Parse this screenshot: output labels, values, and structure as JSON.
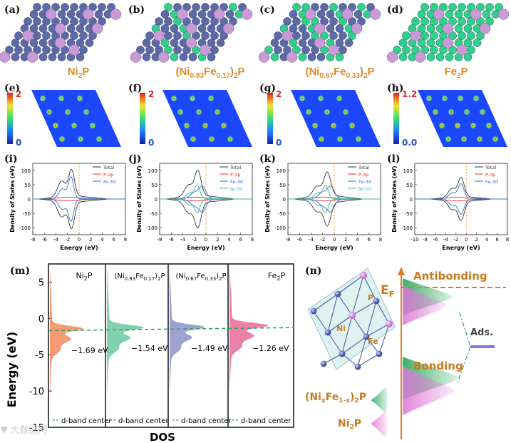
{
  "panels": {
    "a": "(a)",
    "b": "(b)",
    "c": "(c)",
    "d": "(d)",
    "e": "(e)",
    "f": "(f)",
    "g": "(g)",
    "h": "(h)",
    "i": "(i)",
    "j": "(j)",
    "k": "(k)",
    "l": "(l)",
    "m": "(m)",
    "n": "(n)"
  },
  "compositions": {
    "c1": {
      "base": "Ni",
      "sub": "2",
      "tail": "P"
    },
    "c2": {
      "pre": "(Ni",
      "s1": "0.83",
      "mid": "Fe",
      "s2": "0.17",
      "close": ")",
      "s3": "2",
      "tail": "P"
    },
    "c3": {
      "pre": "(Ni",
      "s1": "0.67",
      "mid": "Fe",
      "s2": "0.33",
      "close": ")",
      "s3": "2",
      "tail": "P"
    },
    "c4": {
      "base": "Fe",
      "sub": "2",
      "tail": "P"
    }
  },
  "colorbars": {
    "e": {
      "max": "2",
      "min": "0"
    },
    "f": {
      "max": "2",
      "min": "0"
    },
    "g": {
      "max": "2",
      "min": "0"
    },
    "h": {
      "max": "1.2",
      "min": "0.0"
    }
  },
  "dos_axes": {
    "ylabel": "Density of States (eV)",
    "xlabel": "Energy (eV)",
    "yticks": [
      "100",
      "50",
      "0",
      "-50",
      "-100"
    ],
    "xticks_ijk": [
      "-8",
      "-6",
      "-4",
      "-2",
      "0",
      "2",
      "4",
      "6",
      "8"
    ],
    "xticks_l": [
      "-10",
      "-8",
      "-6",
      "-4",
      "-2",
      "0",
      "2",
      "4",
      "6",
      "8"
    ]
  },
  "legends": {
    "i": [
      "Total",
      "P-3p",
      "Ni-3d"
    ],
    "j": [
      "Total",
      "P-3p",
      "Fe-3d",
      "Ni-3d"
    ],
    "k": [
      "Total",
      "P-3p",
      "Fe-3d",
      "Ni-3d"
    ],
    "l": [
      "Total",
      "P-3p",
      "Fe-3d"
    ]
  },
  "panel_m": {
    "ylabel": "Energy (eV)",
    "xlabel": "DOS",
    "yticks": [
      "5",
      "0",
      "-5",
      "-10",
      "-15"
    ],
    "titles": [
      {
        "pre": "Ni",
        "s1": "2",
        "tail": "P"
      },
      {
        "pre": "(Ni",
        "s1": "0.83",
        "mid": "Fe",
        "s2": "0.17",
        "close": ")",
        "s3": "2",
        "tail": "P"
      },
      {
        "pre": "(Ni",
        "s1": "0.67",
        "mid": "Fe",
        "s2": "0.33",
        "close": ")",
        "s3": "2",
        "tail": "P"
      },
      {
        "pre": "Fe",
        "s1": "2",
        "tail": "P"
      }
    ],
    "centers": [
      "−1.69 eV",
      "−1.54 eV",
      "−1.49 eV",
      "−1.26 eV"
    ],
    "center_values": [
      -1.69,
      -1.54,
      -1.49,
      -1.26
    ],
    "legend": "d-band center",
    "fill_colors": [
      "#f48a5a",
      "#6cc9a0",
      "#8c92c8",
      "#e86b9a"
    ]
  },
  "panel_n": {
    "antibonding": "Antibonding",
    "bonding": "Bonding",
    "ef_main": "E",
    "ef_sub": "F",
    "ads": "Ads.",
    "atom_p": "P",
    "atom_ni": "Ni",
    "atom_fe": "Fe",
    "legend1": {
      "pre": "(Ni",
      "s1": "x",
      "mid": "Fe",
      "s2": "1-x",
      "close": ")",
      "s3": "2",
      "tail": "P"
    },
    "legend2": {
      "pre": "Ni",
      "s1": "2",
      "tail": "P"
    }
  },
  "watermark": "大数据网"
}
